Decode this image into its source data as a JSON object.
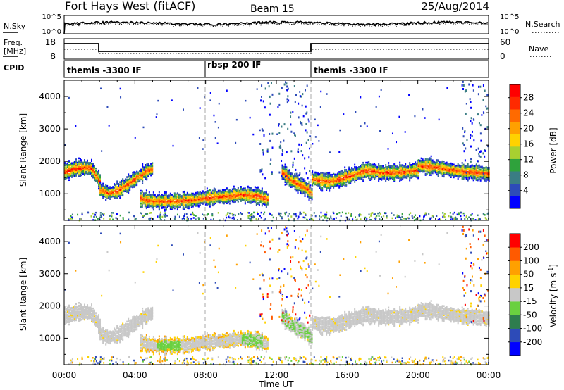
{
  "header": {
    "station": "Fort Hays West (fitACF)",
    "beam": "Beam 15",
    "date": "25/Aug/2014"
  },
  "noise_panel": {
    "left_label": "N.Sky",
    "right_label": "N.Search",
    "left_ticks": [
      "10^5",
      "10^0"
    ],
    "right_ticks": [
      "10^5",
      "10^0"
    ]
  },
  "freq_panel": {
    "left_label_1": "Freq.",
    "left_label_2": "[MHz]",
    "right_label": "Nave",
    "left_ticks": [
      "18",
      "8"
    ],
    "right_ticks": [
      "60",
      "0"
    ]
  },
  "cpid_panel": {
    "label": "CPID",
    "segments": [
      {
        "start_hour": 0,
        "label": "themis -3300 IF"
      },
      {
        "start_hour": 8,
        "label": "rbsp 200 IF"
      },
      {
        "start_hour": 14,
        "label": "themis -3300 IF"
      }
    ]
  },
  "time_axis": {
    "label": "Time UT",
    "ticks": [
      "00:00",
      "04:00",
      "08:00",
      "12:00",
      "16:00",
      "20:00",
      "00:00"
    ]
  },
  "chart_data": [
    {
      "type": "heatmap",
      "title": "",
      "xlabel": "Time UT",
      "ylabel": "Slant Range [km]",
      "xlim": [
        0,
        24
      ],
      "ylim": [
        180,
        4500
      ],
      "y_ticks": [
        1000,
        2000,
        3000,
        4000
      ],
      "dashed_time_markers": [
        8,
        14
      ],
      "colorbar": {
        "label": "Power [dB]",
        "tick_labels": [
          "4",
          "8",
          "12",
          "16",
          "20",
          "24",
          "28"
        ],
        "colors": [
          "#0000ff",
          "#2d4bb8",
          "#3a7d84",
          "#2fa23c",
          "#a8d030",
          "#ffd200",
          "#ffa000",
          "#ff6a00",
          "#ff2a00",
          "#ff0000"
        ]
      },
      "echo_traces": [
        {
          "x": [
            0.0,
            0.5,
            1.0,
            1.5,
            2.0
          ],
          "y": [
            1700,
            1800,
            1830,
            1820,
            1400
          ]
        },
        {
          "x": [
            2.0,
            2.5,
            3.0,
            3.5,
            4.0,
            4.5,
            5.0
          ],
          "y": [
            1150,
            1050,
            1120,
            1300,
            1500,
            1680,
            1820
          ]
        },
        {
          "x": [
            4.3,
            5.0,
            6.0,
            7.0,
            8.0,
            9.0,
            10.0,
            11.0,
            11.5
          ],
          "y": [
            880,
            800,
            800,
            830,
            900,
            950,
            1000,
            950,
            850
          ]
        },
        {
          "x": [
            12.3,
            12.8,
            13.3,
            13.8,
            14.0
          ],
          "y": [
            1700,
            1450,
            1300,
            1150,
            1000
          ]
        },
        {
          "x": [
            14.0,
            15.0,
            16.0,
            17.0,
            18.0,
            19.0,
            20.0
          ],
          "y": [
            1480,
            1400,
            1550,
            1750,
            1680,
            1700,
            1750
          ]
        },
        {
          "x": [
            20.0,
            21.0,
            22.0,
            23.0,
            24.0
          ],
          "y": [
            1900,
            1850,
            1750,
            1700,
            1650
          ]
        }
      ]
    },
    {
      "type": "heatmap",
      "title": "",
      "xlabel": "Time UT",
      "ylabel": "Slant Range [km]",
      "xlim": [
        0,
        24
      ],
      "ylim": [
        180,
        4500
      ],
      "y_ticks": [
        1000,
        2000,
        3000,
        4000
      ],
      "dashed_time_markers": [
        8,
        14
      ],
      "colorbar": {
        "label": "Velocity",
        "units": "m s",
        "units_exponent": "-1",
        "tick_labels": [
          "200",
          "100",
          "50",
          "15",
          "-15",
          "-50",
          "-100",
          "-200"
        ],
        "colors": [
          "#0000ff",
          "#2d4bb8",
          "#2e7d4e",
          "#6ad040",
          "#c8c8c8",
          "#ffd200",
          "#ffa000",
          "#ff5a00",
          "#ff0000"
        ]
      },
      "ground_scatter_color": "#c8c8c8"
    }
  ]
}
